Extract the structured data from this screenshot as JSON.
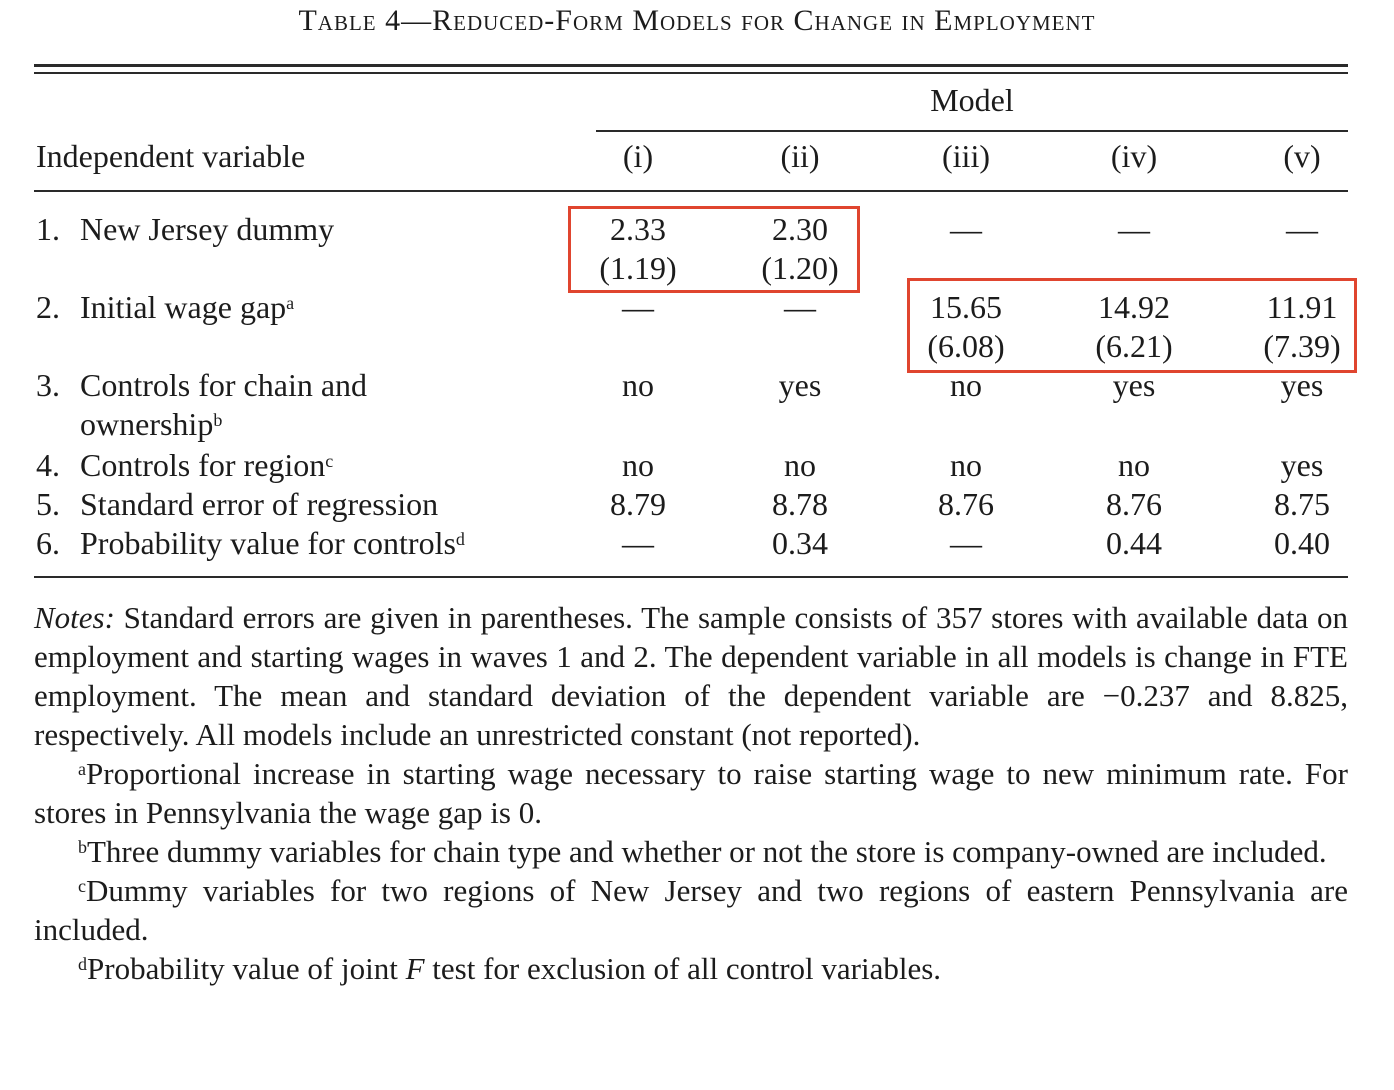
{
  "title": "Table 4—Reduced-Form Models for Change in Employment",
  "model_label": "Model",
  "independent_variable_label": "Independent variable",
  "columns": [
    "(i)",
    "(ii)",
    "(iii)",
    "(iv)",
    "(v)"
  ],
  "rows": [
    {
      "num": "1.",
      "label": "New Jersey dummy",
      "sup": "",
      "label2": "",
      "values": [
        "2.33",
        "2.30",
        "—",
        "—",
        "—"
      ],
      "se": [
        "(1.19)",
        "(1.20)",
        "",
        "",
        ""
      ]
    },
    {
      "num": "2.",
      "label": "Initial wage gap",
      "sup": "a",
      "label2": "",
      "values": [
        "—",
        "—",
        "15.65",
        "14.92",
        "11.91"
      ],
      "se": [
        "",
        "",
        "(6.08)",
        "(6.21)",
        "(7.39)"
      ]
    },
    {
      "num": "3.",
      "label": "Controls for chain and",
      "sup": "",
      "label2": "ownership",
      "sup2": "b",
      "values": [
        "no",
        "yes",
        "no",
        "yes",
        "yes"
      ]
    },
    {
      "num": "4.",
      "label": "Controls for region",
      "sup": "c",
      "label2": "",
      "values": [
        "no",
        "no",
        "no",
        "no",
        "yes"
      ]
    },
    {
      "num": "5.",
      "label": "Standard error of regression",
      "sup": "",
      "label2": "",
      "values": [
        "8.79",
        "8.78",
        "8.76",
        "8.76",
        "8.75"
      ]
    },
    {
      "num": "6.",
      "label": "Probability value for controls",
      "sup": "d",
      "label2": "",
      "values": [
        "—",
        "0.34",
        "—",
        "0.44",
        "0.40"
      ]
    }
  ],
  "notes": {
    "lead": "Notes:",
    "main": "Standard errors are given in parentheses. The sample consists of 357 stores with available data on employment and starting wages in waves 1 and 2. The dependent variable in all models is change in FTE employment. The mean and standard deviation of the dependent variable are −0.237 and 8.825, respectively. All models include an unrestricted constant (not reported).",
    "footnotes": [
      {
        "mark": "a",
        "text": "Proportional increase in starting wage necessary to raise starting wage to new minimum rate. For stores in Pennsylvania the wage gap is 0."
      },
      {
        "mark": "b",
        "text": "Three dummy variables for chain type and whether or not the store is company-owned are included."
      },
      {
        "mark": "c",
        "text": "Dummy variables for two regions of New Jersey and two regions of eastern Pennsylvania are included."
      },
      {
        "mark": "d_pre",
        "text": "Probability value of joint ",
        "italic": "F",
        "post": " test for exclusion of all control variables."
      }
    ]
  },
  "highlight_color": "#e0452f"
}
